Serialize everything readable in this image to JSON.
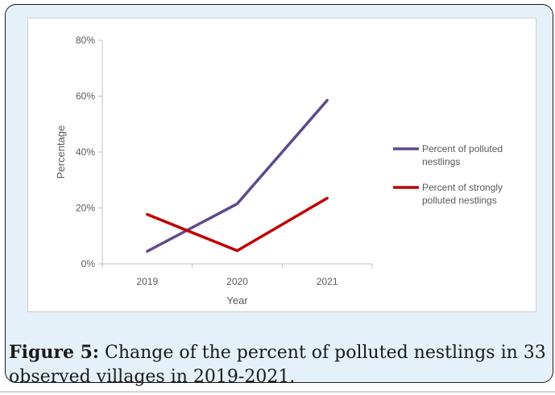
{
  "chart_data": {
    "type": "line",
    "x": [
      "2019",
      "2020",
      "2021"
    ],
    "series": [
      {
        "name": "Percent of polluted nestlings",
        "values": [
          4.5,
          21.5,
          58.5
        ],
        "color": "#5e4a8a"
      },
      {
        "name": "Percent of strongly polluted nestlings",
        "values": [
          17.7,
          4.7,
          23.5
        ],
        "color": "#c00000"
      }
    ],
    "legend_lines": [
      [
        "Percent of polluted",
        "nestlings"
      ],
      [
        "Percent of strongly",
        "polluted nestlings"
      ]
    ],
    "xlabel": "Year",
    "ylabel": "Percentage",
    "ylim": [
      0,
      80
    ],
    "yticks": [
      "0%",
      "20%",
      "40%",
      "60%",
      "80%"
    ],
    "ytick_values": [
      0,
      20,
      40,
      60,
      80
    ],
    "grid": false,
    "legend": "right"
  },
  "caption": {
    "label": "Figure 5:",
    "text": " Change of the percent of polluted nestlings in 33 observed villages in 2019-2021."
  }
}
